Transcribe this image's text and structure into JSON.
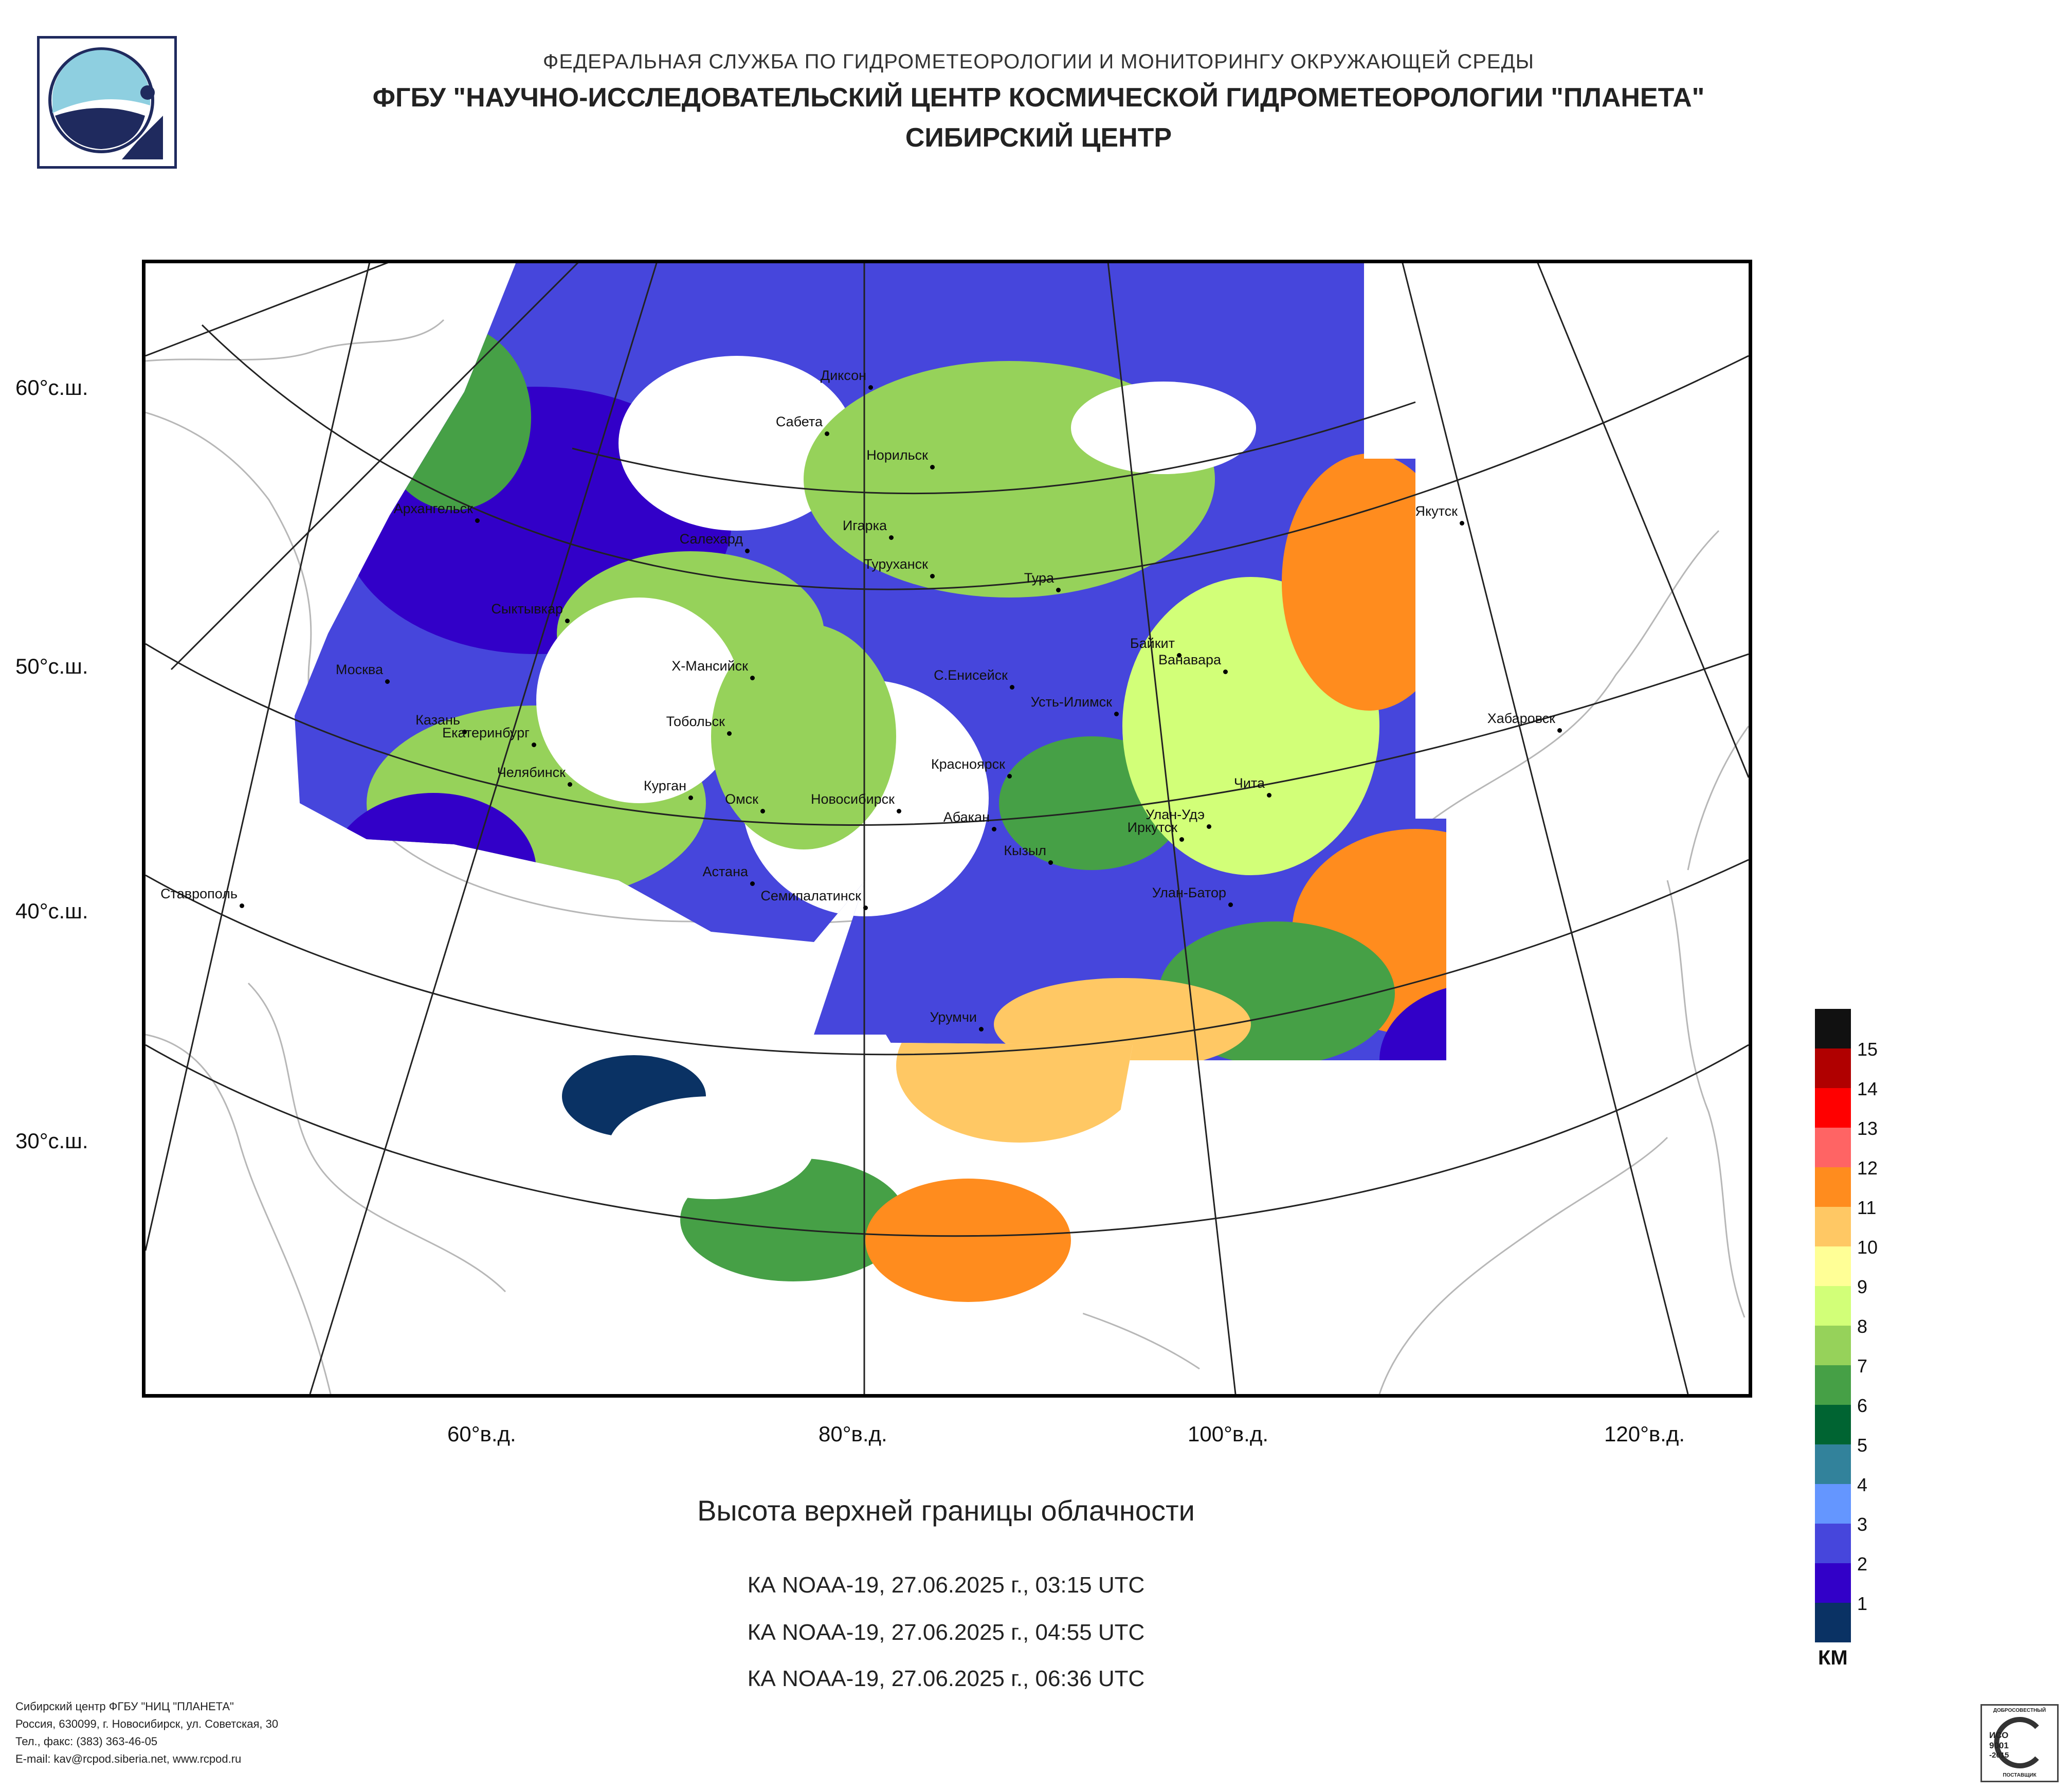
{
  "header": {
    "line1": "ФЕДЕРАЛЬНАЯ СЛУЖБА ПО ГИДРОМЕТЕОРОЛОГИИ И МОНИТОРИНГУ ОКРУЖАЮЩЕЙ СРЕДЫ",
    "line2": "ФГБУ \"НАУЧНО-ИССЛЕДОВАТЕЛЬСКИЙ ЦЕНТР КОСМИЧЕСКОЙ ГИДРОМЕТЕОРОЛОГИИ \"ПЛАНЕТА\"",
    "line3": "СИБИРСКИЙ ЦЕНТР"
  },
  "map": {
    "latitude_labels": [
      "60°с.ш.",
      "50°с.ш.",
      "40°с.ш.",
      "30°с.ш."
    ],
    "longitude_labels": [
      "60°в.д.",
      "80°в.д.",
      "100°в.д.",
      "120°в.д."
    ],
    "cities": [
      {
        "name": "Диксон"
      },
      {
        "name": "Сабета"
      },
      {
        "name": "Норильск"
      },
      {
        "name": "Архангельск"
      },
      {
        "name": "Игарка"
      },
      {
        "name": "Салехард"
      },
      {
        "name": "Туруханск"
      },
      {
        "name": "Якутск"
      },
      {
        "name": "Тура"
      },
      {
        "name": "Сыктывкар"
      },
      {
        "name": "Байкит"
      },
      {
        "name": "Ванавара"
      },
      {
        "name": "Москва"
      },
      {
        "name": "Х-Мансийск"
      },
      {
        "name": "С.Енисейск"
      },
      {
        "name": "Усть-Илимск"
      },
      {
        "name": "Казань"
      },
      {
        "name": "Тобольск"
      },
      {
        "name": "Хабаровск"
      },
      {
        "name": "Екатеринбург"
      },
      {
        "name": "Красноярск"
      },
      {
        "name": "Челябинск"
      },
      {
        "name": "Курган"
      },
      {
        "name": "Чита"
      },
      {
        "name": "Омск"
      },
      {
        "name": "Новосибирск"
      },
      {
        "name": "Улан-Удэ"
      },
      {
        "name": "Абакан"
      },
      {
        "name": "Иркутск"
      },
      {
        "name": "Кызыл"
      },
      {
        "name": "Астана"
      },
      {
        "name": "Ставрополь"
      },
      {
        "name": "Семипалатинск"
      },
      {
        "name": "Улан-Батор"
      },
      {
        "name": "Урумчи"
      }
    ]
  },
  "chart_title": "Высота верхней границы облачности",
  "passes": [
    "КА NOAA-19, 27.06.2025 г., 03:15 UTC",
    "КА NOAA-19, 27.06.2025 г., 04:55 UTC",
    "КА NOAA-19, 27.06.2025 г., 06:36 UTC"
  ],
  "legend": {
    "unit": "КМ",
    "classes": [
      {
        "label": "15",
        "color": "#111111"
      },
      {
        "label": "14",
        "color": "#b00000"
      },
      {
        "label": "13",
        "color": "#ff0000"
      },
      {
        "label": "12",
        "color": "#ff6464"
      },
      {
        "label": "11",
        "color": "#ff8c1e"
      },
      {
        "label": "10",
        "color": "#ffc864"
      },
      {
        "label": "9",
        "color": "#ffff96"
      },
      {
        "label": "8",
        "color": "#d2ff78"
      },
      {
        "label": "7",
        "color": "#96d25a"
      },
      {
        "label": "6",
        "color": "#46a046"
      },
      {
        "label": "5",
        "color": "#006432"
      },
      {
        "label": "4",
        "color": "#32829b"
      },
      {
        "label": "3",
        "color": "#6496ff"
      },
      {
        "label": "2",
        "color": "#4646dc"
      },
      {
        "label": "1",
        "color": "#3200c8"
      },
      {
        "label": "",
        "color": "#0a3264"
      }
    ]
  },
  "footer": {
    "line1": "Сибирский центр ФГБУ \"НИЦ \"ПЛАНЕТА\"",
    "line2": "Россия, 630099, г. Новосибирск, ул. Советская, 30",
    "line3": "Тел., факс: (383) 363-46-05",
    "line4": "E-mail: kav@rcpod.siberia.net, www.rcpod.ru"
  },
  "cert": {
    "top": "ДОБРОСОВЕСТНЫЙ",
    "mid1": "ИСО",
    "mid2": "9001",
    "mid3": "-2015",
    "bottom": "ПОСТАВЩИК"
  }
}
